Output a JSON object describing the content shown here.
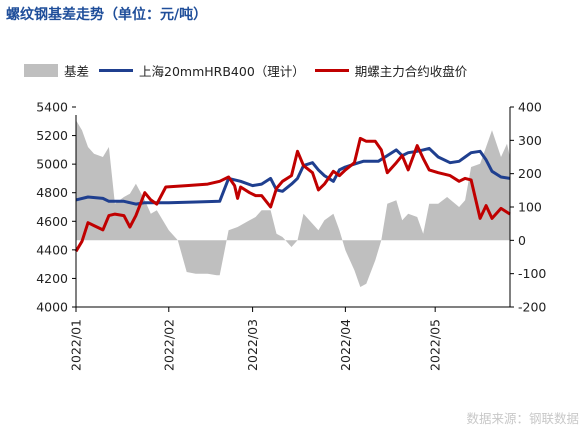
{
  "title": "螺纹钢基差走势（单位：元/吨）",
  "source": "数据来源：钢联数据",
  "chart_data": {
    "type": "line",
    "x_axis": {
      "ticks": [
        "2022/01",
        "2022/02",
        "2022/03",
        "2022/04",
        "2022/05"
      ],
      "range": [
        "2022-01-01",
        "2022-05-26"
      ]
    },
    "y_left": {
      "min": 4000,
      "max": 5400,
      "step": 200,
      "ticks": [
        "4000",
        "4200",
        "4400",
        "4600",
        "4800",
        "5000",
        "5200",
        "5400"
      ]
    },
    "y_right": {
      "min": -200,
      "max": 400,
      "step": 100,
      "ticks": [
        "-200",
        "-100",
        "0",
        "100",
        "200",
        "300",
        "400"
      ]
    },
    "legend_placement": "top",
    "grid": false,
    "series": [
      {
        "name": "基差",
        "kind": "area",
        "axis": "right",
        "color": "#bfbfbf",
        "points": [
          [
            "2022-01-01",
            360
          ],
          [
            "2022-01-03",
            330
          ],
          [
            "2022-01-05",
            280
          ],
          [
            "2022-01-07",
            260
          ],
          [
            "2022-01-10",
            250
          ],
          [
            "2022-01-12",
            280
          ],
          [
            "2022-01-14",
            110
          ],
          [
            "2022-01-17",
            130
          ],
          [
            "2022-01-19",
            140
          ],
          [
            "2022-01-21",
            170
          ],
          [
            "2022-01-24",
            120
          ],
          [
            "2022-01-26",
            80
          ],
          [
            "2022-01-28",
            90
          ],
          [
            "2022-02-01",
            30
          ],
          [
            "2022-02-04",
            0
          ],
          [
            "2022-02-07",
            -95
          ],
          [
            "2022-02-10",
            -100
          ],
          [
            "2022-02-14",
            -100
          ],
          [
            "2022-02-17",
            -105
          ],
          [
            "2022-02-18",
            -105
          ],
          [
            "2022-02-21",
            30
          ],
          [
            "2022-02-24",
            40
          ],
          [
            "2022-02-28",
            60
          ],
          [
            "2022-03-02",
            70
          ],
          [
            "2022-03-04",
            90
          ],
          [
            "2022-03-07",
            90
          ],
          [
            "2022-03-09",
            20
          ],
          [
            "2022-03-11",
            10
          ],
          [
            "2022-03-14",
            -20
          ],
          [
            "2022-03-16",
            0
          ],
          [
            "2022-03-18",
            80
          ],
          [
            "2022-03-21",
            50
          ],
          [
            "2022-03-23",
            30
          ],
          [
            "2022-03-25",
            60
          ],
          [
            "2022-03-28",
            80
          ],
          [
            "2022-03-30",
            30
          ],
          [
            "2022-04-01",
            -30
          ],
          [
            "2022-04-04",
            -90
          ],
          [
            "2022-04-06",
            -140
          ],
          [
            "2022-04-08",
            -130
          ],
          [
            "2022-04-11",
            -60
          ],
          [
            "2022-04-13",
            0
          ],
          [
            "2022-04-15",
            110
          ],
          [
            "2022-04-18",
            120
          ],
          [
            "2022-04-20",
            60
          ],
          [
            "2022-04-22",
            80
          ],
          [
            "2022-04-25",
            70
          ],
          [
            "2022-04-27",
            20
          ],
          [
            "2022-04-29",
            110
          ],
          [
            "2022-05-02",
            110
          ],
          [
            "2022-05-05",
            130
          ],
          [
            "2022-05-09",
            100
          ],
          [
            "2022-05-11",
            120
          ],
          [
            "2022-05-13",
            220
          ],
          [
            "2022-05-16",
            230
          ],
          [
            "2022-05-18",
            280
          ],
          [
            "2022-05-20",
            330
          ],
          [
            "2022-05-23",
            250
          ],
          [
            "2022-05-25",
            290
          ],
          [
            "2022-05-26",
            250
          ]
        ]
      },
      {
        "name": "上海20mmHRB400（理计）",
        "kind": "line",
        "axis": "left",
        "color": "#1f3f8f",
        "points": [
          [
            "2022-01-01",
            4750
          ],
          [
            "2022-01-05",
            4770
          ],
          [
            "2022-01-10",
            4760
          ],
          [
            "2022-01-12",
            4740
          ],
          [
            "2022-01-17",
            4740
          ],
          [
            "2022-01-19",
            4730
          ],
          [
            "2022-01-21",
            4720
          ],
          [
            "2022-01-24",
            4730
          ],
          [
            "2022-02-01",
            4730
          ],
          [
            "2022-02-10",
            4735
          ],
          [
            "2022-02-18",
            4740
          ],
          [
            "2022-02-21",
            4900
          ],
          [
            "2022-02-25",
            4880
          ],
          [
            "2022-03-01",
            4850
          ],
          [
            "2022-03-04",
            4860
          ],
          [
            "2022-03-07",
            4900
          ],
          [
            "2022-03-09",
            4820
          ],
          [
            "2022-03-11",
            4810
          ],
          [
            "2022-03-14",
            4860
          ],
          [
            "2022-03-16",
            4900
          ],
          [
            "2022-03-18",
            4990
          ],
          [
            "2022-03-21",
            5010
          ],
          [
            "2022-03-23",
            4960
          ],
          [
            "2022-03-25",
            4920
          ],
          [
            "2022-03-28",
            4880
          ],
          [
            "2022-03-30",
            4960
          ],
          [
            "2022-04-01",
            4980
          ],
          [
            "2022-04-04",
            5000
          ],
          [
            "2022-04-07",
            5020
          ],
          [
            "2022-04-12",
            5020
          ],
          [
            "2022-04-15",
            5060
          ],
          [
            "2022-04-18",
            5100
          ],
          [
            "2022-04-20",
            5060
          ],
          [
            "2022-04-22",
            5080
          ],
          [
            "2022-04-25",
            5090
          ],
          [
            "2022-04-27",
            5100
          ],
          [
            "2022-04-29",
            5110
          ],
          [
            "2022-05-02",
            5050
          ],
          [
            "2022-05-06",
            5010
          ],
          [
            "2022-05-09",
            5020
          ],
          [
            "2022-05-11",
            5050
          ],
          [
            "2022-05-13",
            5080
          ],
          [
            "2022-05-16",
            5090
          ],
          [
            "2022-05-18",
            5030
          ],
          [
            "2022-05-20",
            4950
          ],
          [
            "2022-05-23",
            4910
          ],
          [
            "2022-05-26",
            4900
          ]
        ]
      },
      {
        "name": "期螺主力合约收盘价",
        "kind": "line",
        "axis": "left",
        "color": "#c00000",
        "points": [
          [
            "2022-01-01",
            4390
          ],
          [
            "2022-01-03",
            4460
          ],
          [
            "2022-01-05",
            4590
          ],
          [
            "2022-01-07",
            4570
          ],
          [
            "2022-01-10",
            4540
          ],
          [
            "2022-01-12",
            4640
          ],
          [
            "2022-01-14",
            4650
          ],
          [
            "2022-01-17",
            4640
          ],
          [
            "2022-01-19",
            4560
          ],
          [
            "2022-01-21",
            4640
          ],
          [
            "2022-01-24",
            4800
          ],
          [
            "2022-01-26",
            4750
          ],
          [
            "2022-01-28",
            4720
          ],
          [
            "2022-01-31",
            4840
          ],
          [
            "2022-02-07",
            4850
          ],
          [
            "2022-02-14",
            4860
          ],
          [
            "2022-02-18",
            4880
          ],
          [
            "2022-02-21",
            4910
          ],
          [
            "2022-02-23",
            4850
          ],
          [
            "2022-02-24",
            4760
          ],
          [
            "2022-02-25",
            4840
          ],
          [
            "2022-02-28",
            4800
          ],
          [
            "2022-03-02",
            4780
          ],
          [
            "2022-03-04",
            4780
          ],
          [
            "2022-03-07",
            4700
          ],
          [
            "2022-03-09",
            4830
          ],
          [
            "2022-03-11",
            4880
          ],
          [
            "2022-03-14",
            4920
          ],
          [
            "2022-03-16",
            5090
          ],
          [
            "2022-03-18",
            4990
          ],
          [
            "2022-03-21",
            4940
          ],
          [
            "2022-03-23",
            4820
          ],
          [
            "2022-03-25",
            4860
          ],
          [
            "2022-03-28",
            4950
          ],
          [
            "2022-03-30",
            4920
          ],
          [
            "2022-04-01",
            4960
          ],
          [
            "2022-04-04",
            5010
          ],
          [
            "2022-04-06",
            5180
          ],
          [
            "2022-04-08",
            5160
          ],
          [
            "2022-04-11",
            5160
          ],
          [
            "2022-04-13",
            5100
          ],
          [
            "2022-04-15",
            4940
          ],
          [
            "2022-04-18",
            5010
          ],
          [
            "2022-04-20",
            5060
          ],
          [
            "2022-04-22",
            4960
          ],
          [
            "2022-04-25",
            5130
          ],
          [
            "2022-04-27",
            5040
          ],
          [
            "2022-04-29",
            4960
          ],
          [
            "2022-05-02",
            4940
          ],
          [
            "2022-05-06",
            4920
          ],
          [
            "2022-05-09",
            4880
          ],
          [
            "2022-05-11",
            4900
          ],
          [
            "2022-05-13",
            4890
          ],
          [
            "2022-05-16",
            4620
          ],
          [
            "2022-05-18",
            4710
          ],
          [
            "2022-05-20",
            4620
          ],
          [
            "2022-05-23",
            4690
          ],
          [
            "2022-05-26",
            4650
          ]
        ]
      }
    ]
  }
}
